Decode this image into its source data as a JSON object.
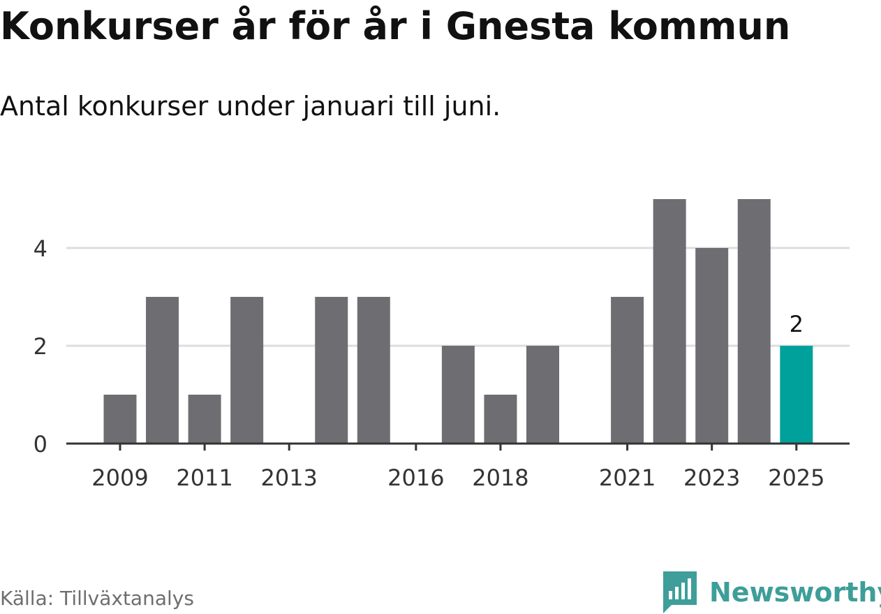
{
  "title": "Konkurser år för år i Gnesta kommun",
  "subtitle": "Antal konkurser under januari till juni.",
  "source": "Källa: Tillväxtanalys",
  "brand": "Newsworthy",
  "colors": {
    "bar": "#6e6d72",
    "highlight": "#00a19a",
    "grid": "#dddddd",
    "axis": "#333333",
    "brand": "#3e9e99"
  },
  "chart_data": {
    "type": "bar",
    "categories": [
      "2009",
      "2010",
      "2011",
      "2012",
      "2013",
      "2014",
      "2015",
      "2016",
      "2017",
      "2018",
      "2019",
      "2020",
      "2021",
      "2022",
      "2023",
      "2024",
      "2025"
    ],
    "values": [
      1,
      3,
      1,
      3,
      0,
      3,
      3,
      0,
      2,
      1,
      2,
      0,
      3,
      5,
      4,
      5,
      2
    ],
    "x_tick_labels": [
      "2009",
      "2011",
      "2013",
      "2016",
      "2018",
      "2021",
      "2023",
      "2025"
    ],
    "y_ticks": [
      0,
      2,
      4
    ],
    "ylim": [
      0,
      5
    ],
    "highlight_category": "2025",
    "data_labels": [
      {
        "category": "2025",
        "value": "2"
      }
    ],
    "grid": true
  }
}
